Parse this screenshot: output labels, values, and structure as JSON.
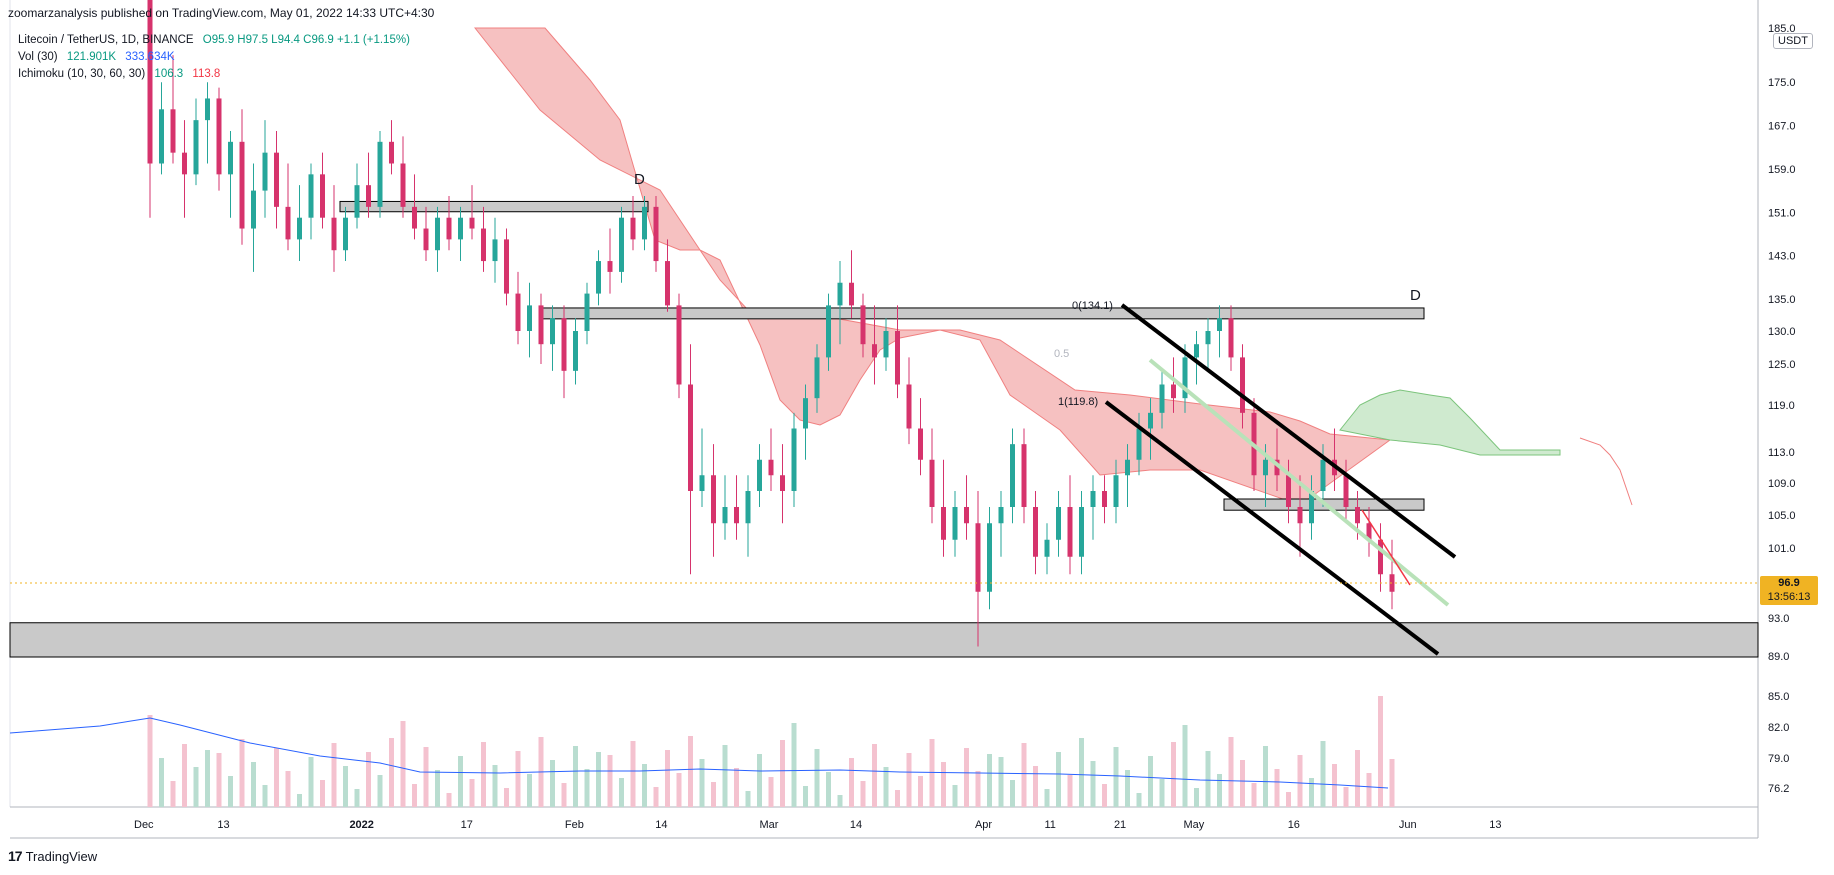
{
  "attribution": "zoomarzanalysis published on TradingView.com, May 01, 2022 14:33 UTC+4:30",
  "legend": {
    "symbol": "Litecoin / TetherUS, 1D, BINANCE",
    "ohlc": "O95.9 H97.5 L94.4 C96.9 +1.1 (+1.15%)",
    "vol_label": "Vol (30)",
    "vol_value": "121.901K",
    "vol_ma": "333.634K",
    "ichimoku_label": "Ichimoku (10, 30, 60, 30)",
    "ichimoku_v1": "106.3",
    "ichimoku_v2": "113.8"
  },
  "brand": {
    "logo": "17",
    "name": "TradingView"
  },
  "colors": {
    "up": "#26a69a",
    "down": "#d6336c",
    "cloud_bear": "#f6c1c1",
    "cloud_bull": "#cfeacf",
    "vol_ma": "#2962ff",
    "price_tag": "#f0b323"
  },
  "chart_data": {
    "type": "candlestick",
    "title": "",
    "price_axis_unit": "USDT",
    "price_ticks": [
      "185.0",
      "175.0",
      "167.0",
      "159.0",
      "151.0",
      "143.0",
      "135.0",
      "130.0",
      "125.0",
      "119.0",
      "113.0",
      "109.0",
      "105.0",
      "101.0",
      "93.0",
      "89.0",
      "85.0",
      "82.0",
      "79.0",
      "76.2"
    ],
    "time_ticks": [
      "Dec",
      "13",
      "2022",
      "17",
      "Feb",
      "14",
      "Mar",
      "14",
      "Apr",
      "11",
      "21",
      "May",
      "16",
      "Jun",
      "13"
    ],
    "last_price": "96.9",
    "countdown": "13:56:13",
    "fib_labels": {
      "top": "0(134.1)",
      "mid": "0.5",
      "bottom": "1(119.8)"
    },
    "zone_labels": [
      "D",
      "D"
    ],
    "candles_summary": "daily LTC/USDT from late Nov 2021 to May 1 2022; peak ~210, low ~90 (Feb 24 wick)",
    "ohlc_last": {
      "open": 95.9,
      "high": 97.5,
      "low": 94.4,
      "close": 96.9
    },
    "annotations": {
      "descending_channel": "drawn Apr 1 to mid-May",
      "support_zone": "89.0 to 92.5",
      "resistance_zones": [
        "151.5-153",
        "132-133.5",
        "106-107.5"
      ]
    }
  }
}
